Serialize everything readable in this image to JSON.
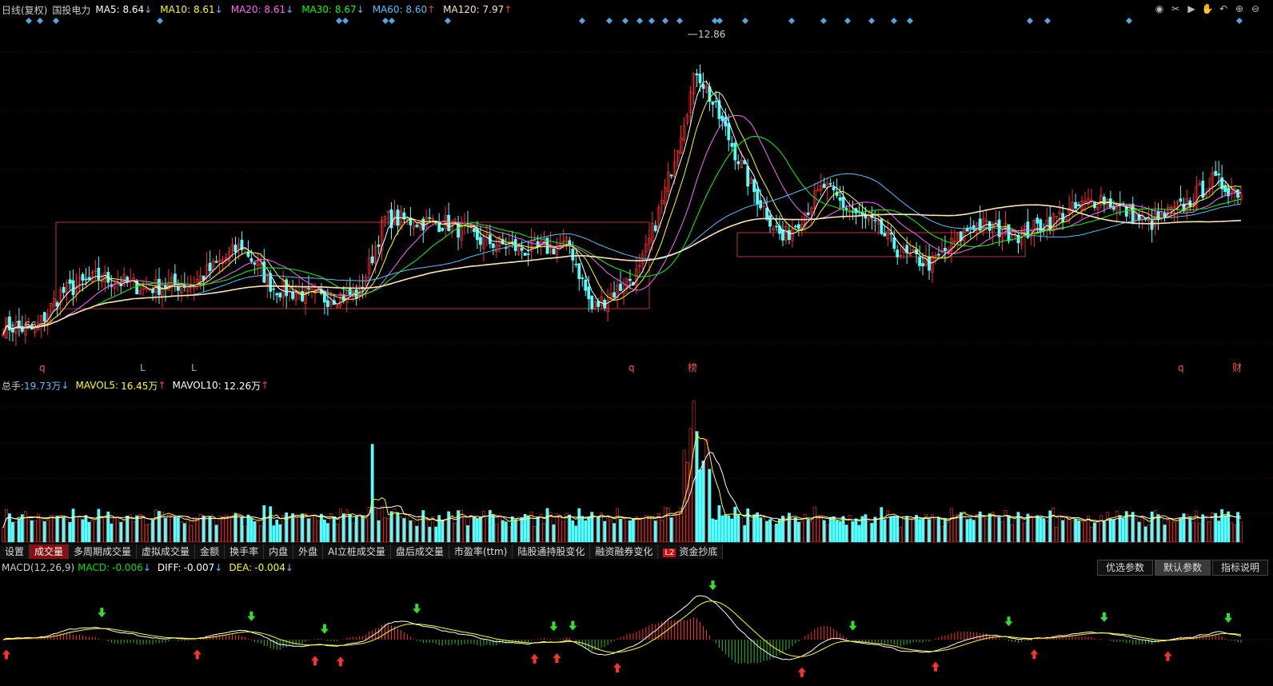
{
  "header": {
    "period_label": "日线(复权)",
    "stock_name": "国投电力",
    "ma": [
      {
        "label": "MA5:",
        "value": "8.64",
        "dir": "down",
        "color": "#ffffff"
      },
      {
        "label": "MA10:",
        "value": "8.61",
        "dir": "down",
        "color": "#ffff00"
      },
      {
        "label": "MA20:",
        "value": "8.61",
        "dir": "down",
        "color": "#ff66ff"
      },
      {
        "label": "MA30:",
        "value": "8.67",
        "dir": "down",
        "color": "#00ff00"
      },
      {
        "label": "MA60:",
        "value": "8.60",
        "dir": "up",
        "color": "#4fc3ff"
      },
      {
        "label": "MA120:",
        "value": "7.97",
        "dir": "up",
        "color": "#ffe4b5"
      }
    ],
    "tools": [
      "eye-icon",
      "scissors-icon",
      "play-icon",
      "hand-icon",
      "undo-icon",
      "zoom-in-icon",
      "zoom-out-icon"
    ]
  },
  "price_chart": {
    "high_label": "12.86",
    "low_label": "7.66",
    "bottom_markers": [
      {
        "x": 0.031,
        "text": "q",
        "color": "#ff4d4d"
      },
      {
        "x": 0.11,
        "text": "L",
        "color": "#4fc3ff"
      },
      {
        "x": 0.15,
        "text": "L",
        "color": "#4fc3ff"
      },
      {
        "x": 0.494,
        "text": "q",
        "color": "#ff4d4d"
      },
      {
        "x": 0.54,
        "text": "榜",
        "color": "#ff4d4d"
      },
      {
        "x": 0.925,
        "text": "q",
        "color": "#ff4d4d"
      },
      {
        "x": 0.968,
        "text": "财",
        "color": "#ff4d4d"
      }
    ]
  },
  "volume": {
    "total_label": "总手:",
    "total_value": "19.73万",
    "total_dir": "down",
    "mavol5_label": "MAVOL5:",
    "mavol5_value": "16.45万",
    "mavol5_dir": "up",
    "mavol10_label": "MAVOL10:",
    "mavol10_value": "12.26万",
    "mavol10_dir": "up"
  },
  "tabs": [
    {
      "label": "设置",
      "active": false
    },
    {
      "label": "成交量",
      "active": true
    },
    {
      "label": "多周期成交量",
      "active": false
    },
    {
      "label": "虚拟成交量",
      "active": false
    },
    {
      "label": "金额",
      "active": false
    },
    {
      "label": "换手率",
      "active": false
    },
    {
      "label": "内盘",
      "active": false
    },
    {
      "label": "外盘",
      "active": false
    },
    {
      "label": "AI立桩成交量",
      "active": false
    },
    {
      "label": "盘后成交量",
      "active": false
    },
    {
      "label": "市盈率(ttm)",
      "active": false
    },
    {
      "label": "陆股通持股变化",
      "active": false
    },
    {
      "label": "融资融券变化",
      "active": false
    },
    {
      "label": "资金抄底",
      "active": false,
      "badge": "L2"
    }
  ],
  "macd": {
    "title": "MACD(12,26,9)",
    "macd_label": "MACD:",
    "macd_value": "-0.006",
    "macd_dir": "down",
    "diff_label": "DIFF:",
    "diff_value": "-0.007",
    "diff_dir": "down",
    "dea_label": "DEA:",
    "dea_value": "-0.004",
    "dea_dir": "down",
    "buttons": [
      {
        "label": "优选参数",
        "on": false
      },
      {
        "label": "默认参数",
        "on": true
      },
      {
        "label": "指标说明",
        "on": false
      }
    ]
  },
  "chart_data": {
    "type": "candlestick",
    "symbol": "国投电力",
    "period": "daily",
    "n_bars": 390,
    "anchors": [
      [
        0,
        7.9
      ],
      [
        10,
        7.8
      ],
      [
        18,
        8.5
      ],
      [
        30,
        8.8
      ],
      [
        45,
        8.6
      ],
      [
        60,
        8.7
      ],
      [
        75,
        9.4
      ],
      [
        85,
        8.6
      ],
      [
        100,
        8.4
      ],
      [
        112,
        8.5
      ],
      [
        120,
        9.9
      ],
      [
        140,
        9.8
      ],
      [
        150,
        9.5
      ],
      [
        165,
        9.3
      ],
      [
        178,
        9.4
      ],
      [
        185,
        8.2
      ],
      [
        200,
        8.9
      ],
      [
        208,
        10.4
      ],
      [
        218,
        12.7
      ],
      [
        225,
        11.8
      ],
      [
        235,
        10.5
      ],
      [
        245,
        9.5
      ],
      [
        258,
        10.5
      ],
      [
        265,
        10.1
      ],
      [
        275,
        9.7
      ],
      [
        283,
        9.2
      ],
      [
        292,
        9.05
      ],
      [
        305,
        9.8
      ],
      [
        320,
        9.6
      ],
      [
        345,
        10.3
      ],
      [
        360,
        9.8
      ],
      [
        370,
        10.1
      ],
      [
        380,
        10.6
      ],
      [
        389,
        10.4
      ]
    ],
    "price_range": [
      7.4,
      13.4
    ],
    "high": 12.86,
    "low": 7.66,
    "ma_last": {
      "MA5": 8.64,
      "MA10": 8.61,
      "MA20": 8.61,
      "MA30": 8.67,
      "MA60": 8.6,
      "MA120": 7.97
    },
    "volume_last": {
      "total": "19.73万",
      "MAVOL5": "16.45万",
      "MAVOL10": "12.26万"
    },
    "macd_last": {
      "MACD": -0.006,
      "DIFF": -0.007,
      "DEA": -0.004
    }
  }
}
